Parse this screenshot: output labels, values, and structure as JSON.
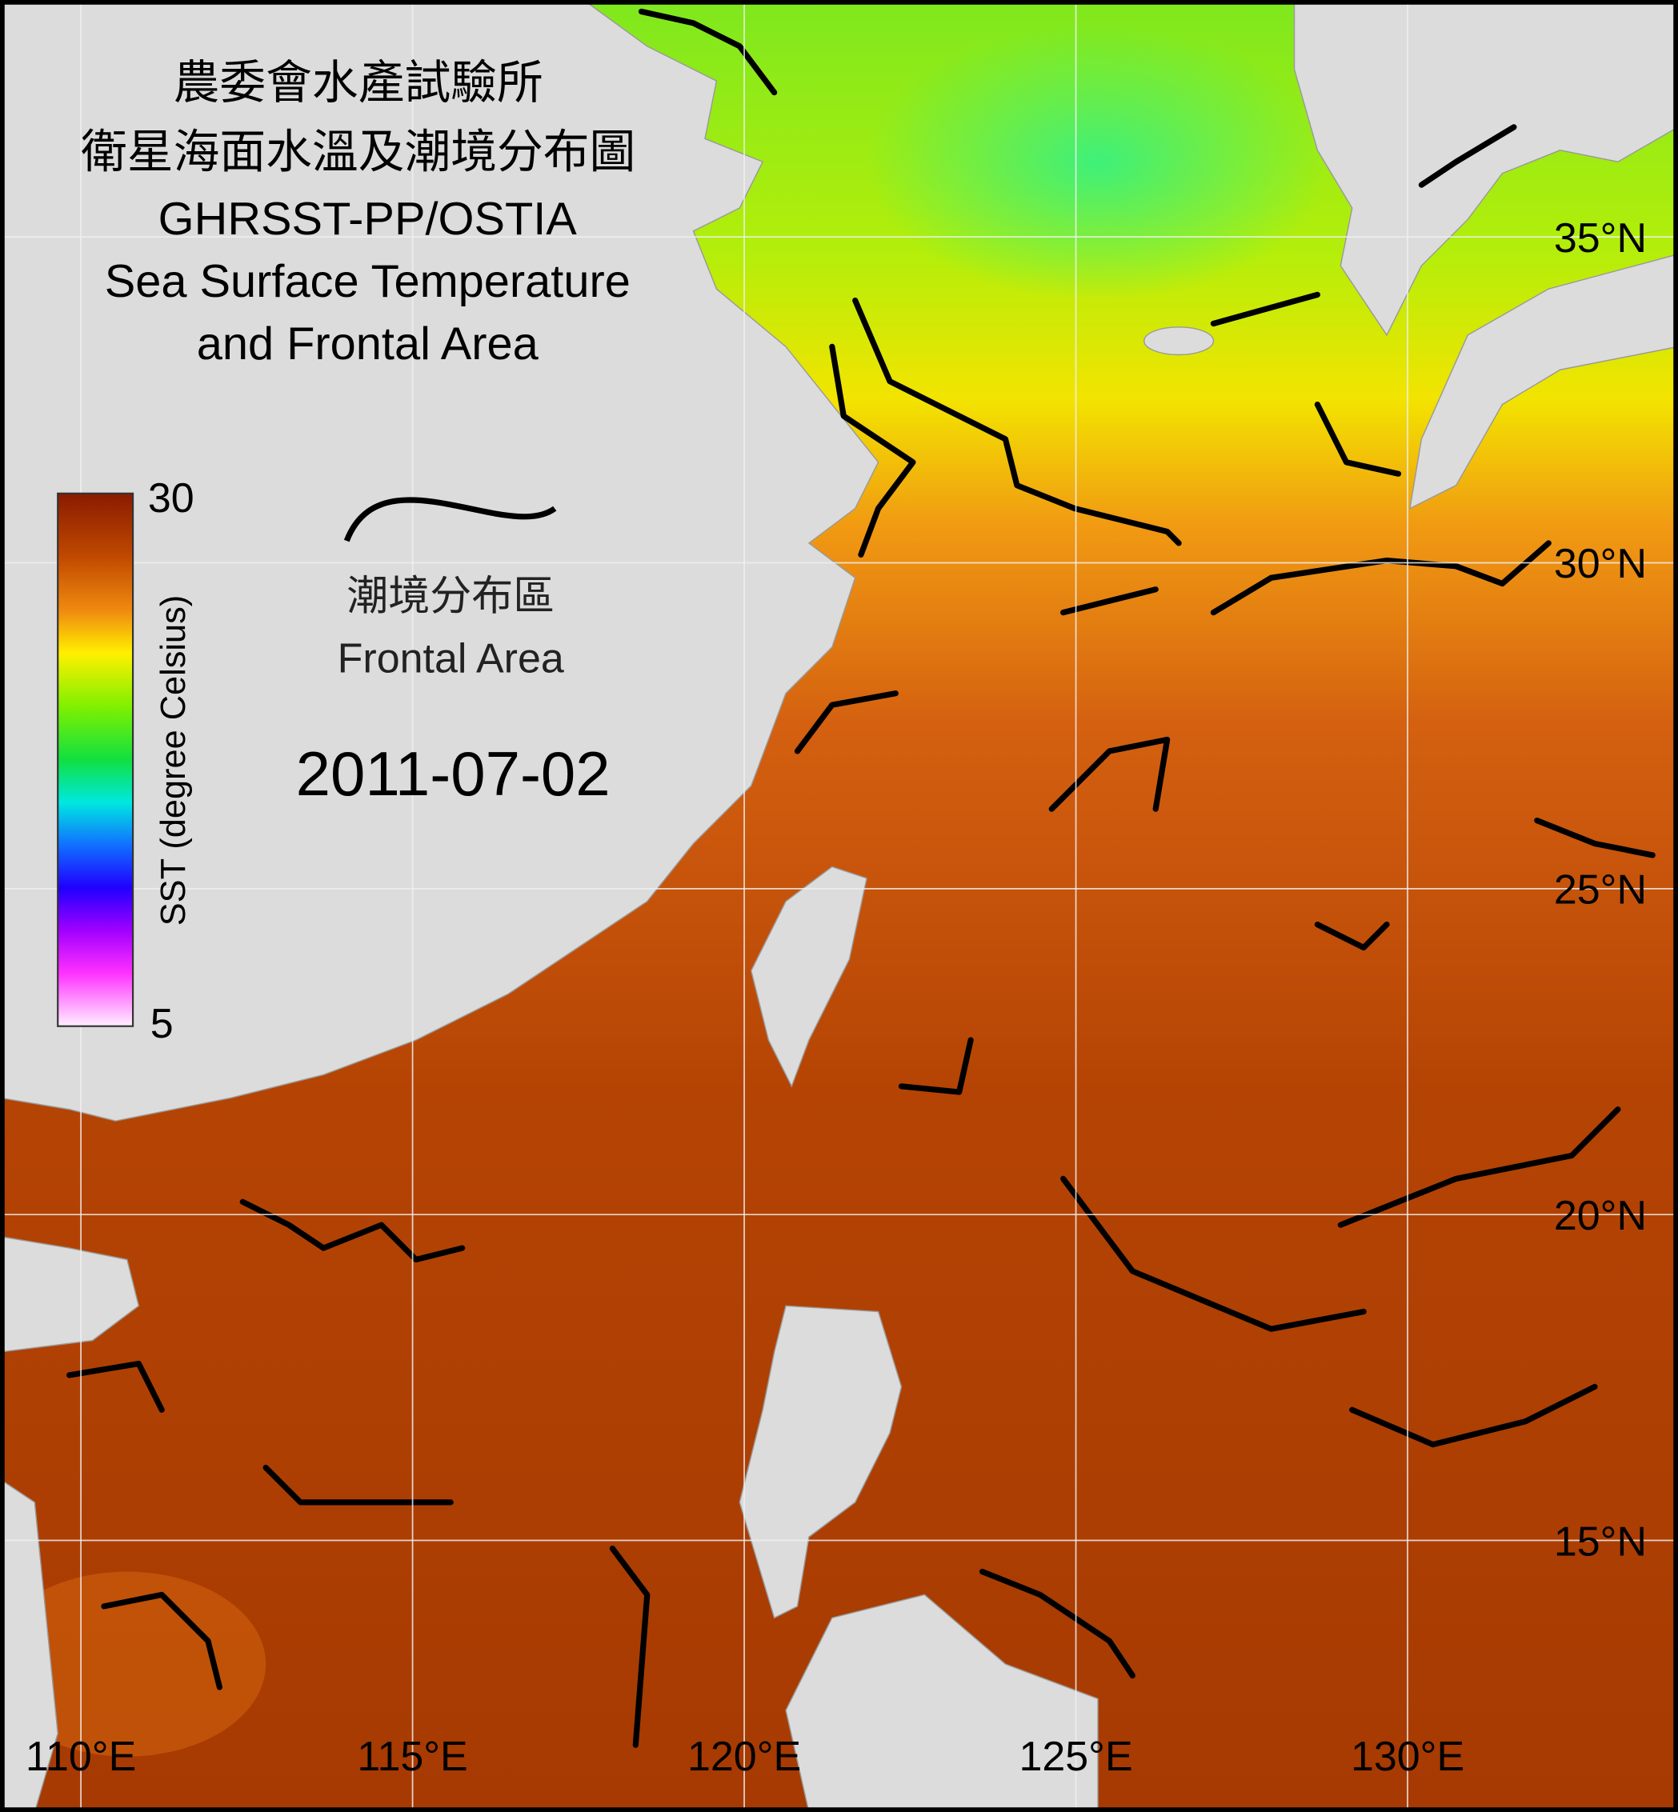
{
  "title": {
    "lines": [
      "農委會水產試驗所",
      "衛星海面水溫及潮境分布圖",
      "GHRSST-PP/OSTIA",
      "Sea Surface Temperature",
      "and Frontal Area"
    ]
  },
  "colorbar": {
    "label": "SST (degree Celsius)",
    "max": 30,
    "min": 5
  },
  "legend": {
    "label_zh": "潮境分布區",
    "label_en": "Frontal Area"
  },
  "date": "2011-07-02",
  "lat_ticks": [
    {
      "value": 35,
      "label": "35°N"
    },
    {
      "value": 30,
      "label": "30°N"
    },
    {
      "value": 25,
      "label": "25°N"
    },
    {
      "value": 20,
      "label": "20°N"
    },
    {
      "value": 15,
      "label": "15°N"
    }
  ],
  "lon_ticks": [
    {
      "value": 110,
      "label": "110°E"
    },
    {
      "value": 115,
      "label": "115°E"
    },
    {
      "value": 120,
      "label": "120°E"
    },
    {
      "value": 125,
      "label": "125°E"
    },
    {
      "value": 130,
      "label": "130°E"
    }
  ]
}
